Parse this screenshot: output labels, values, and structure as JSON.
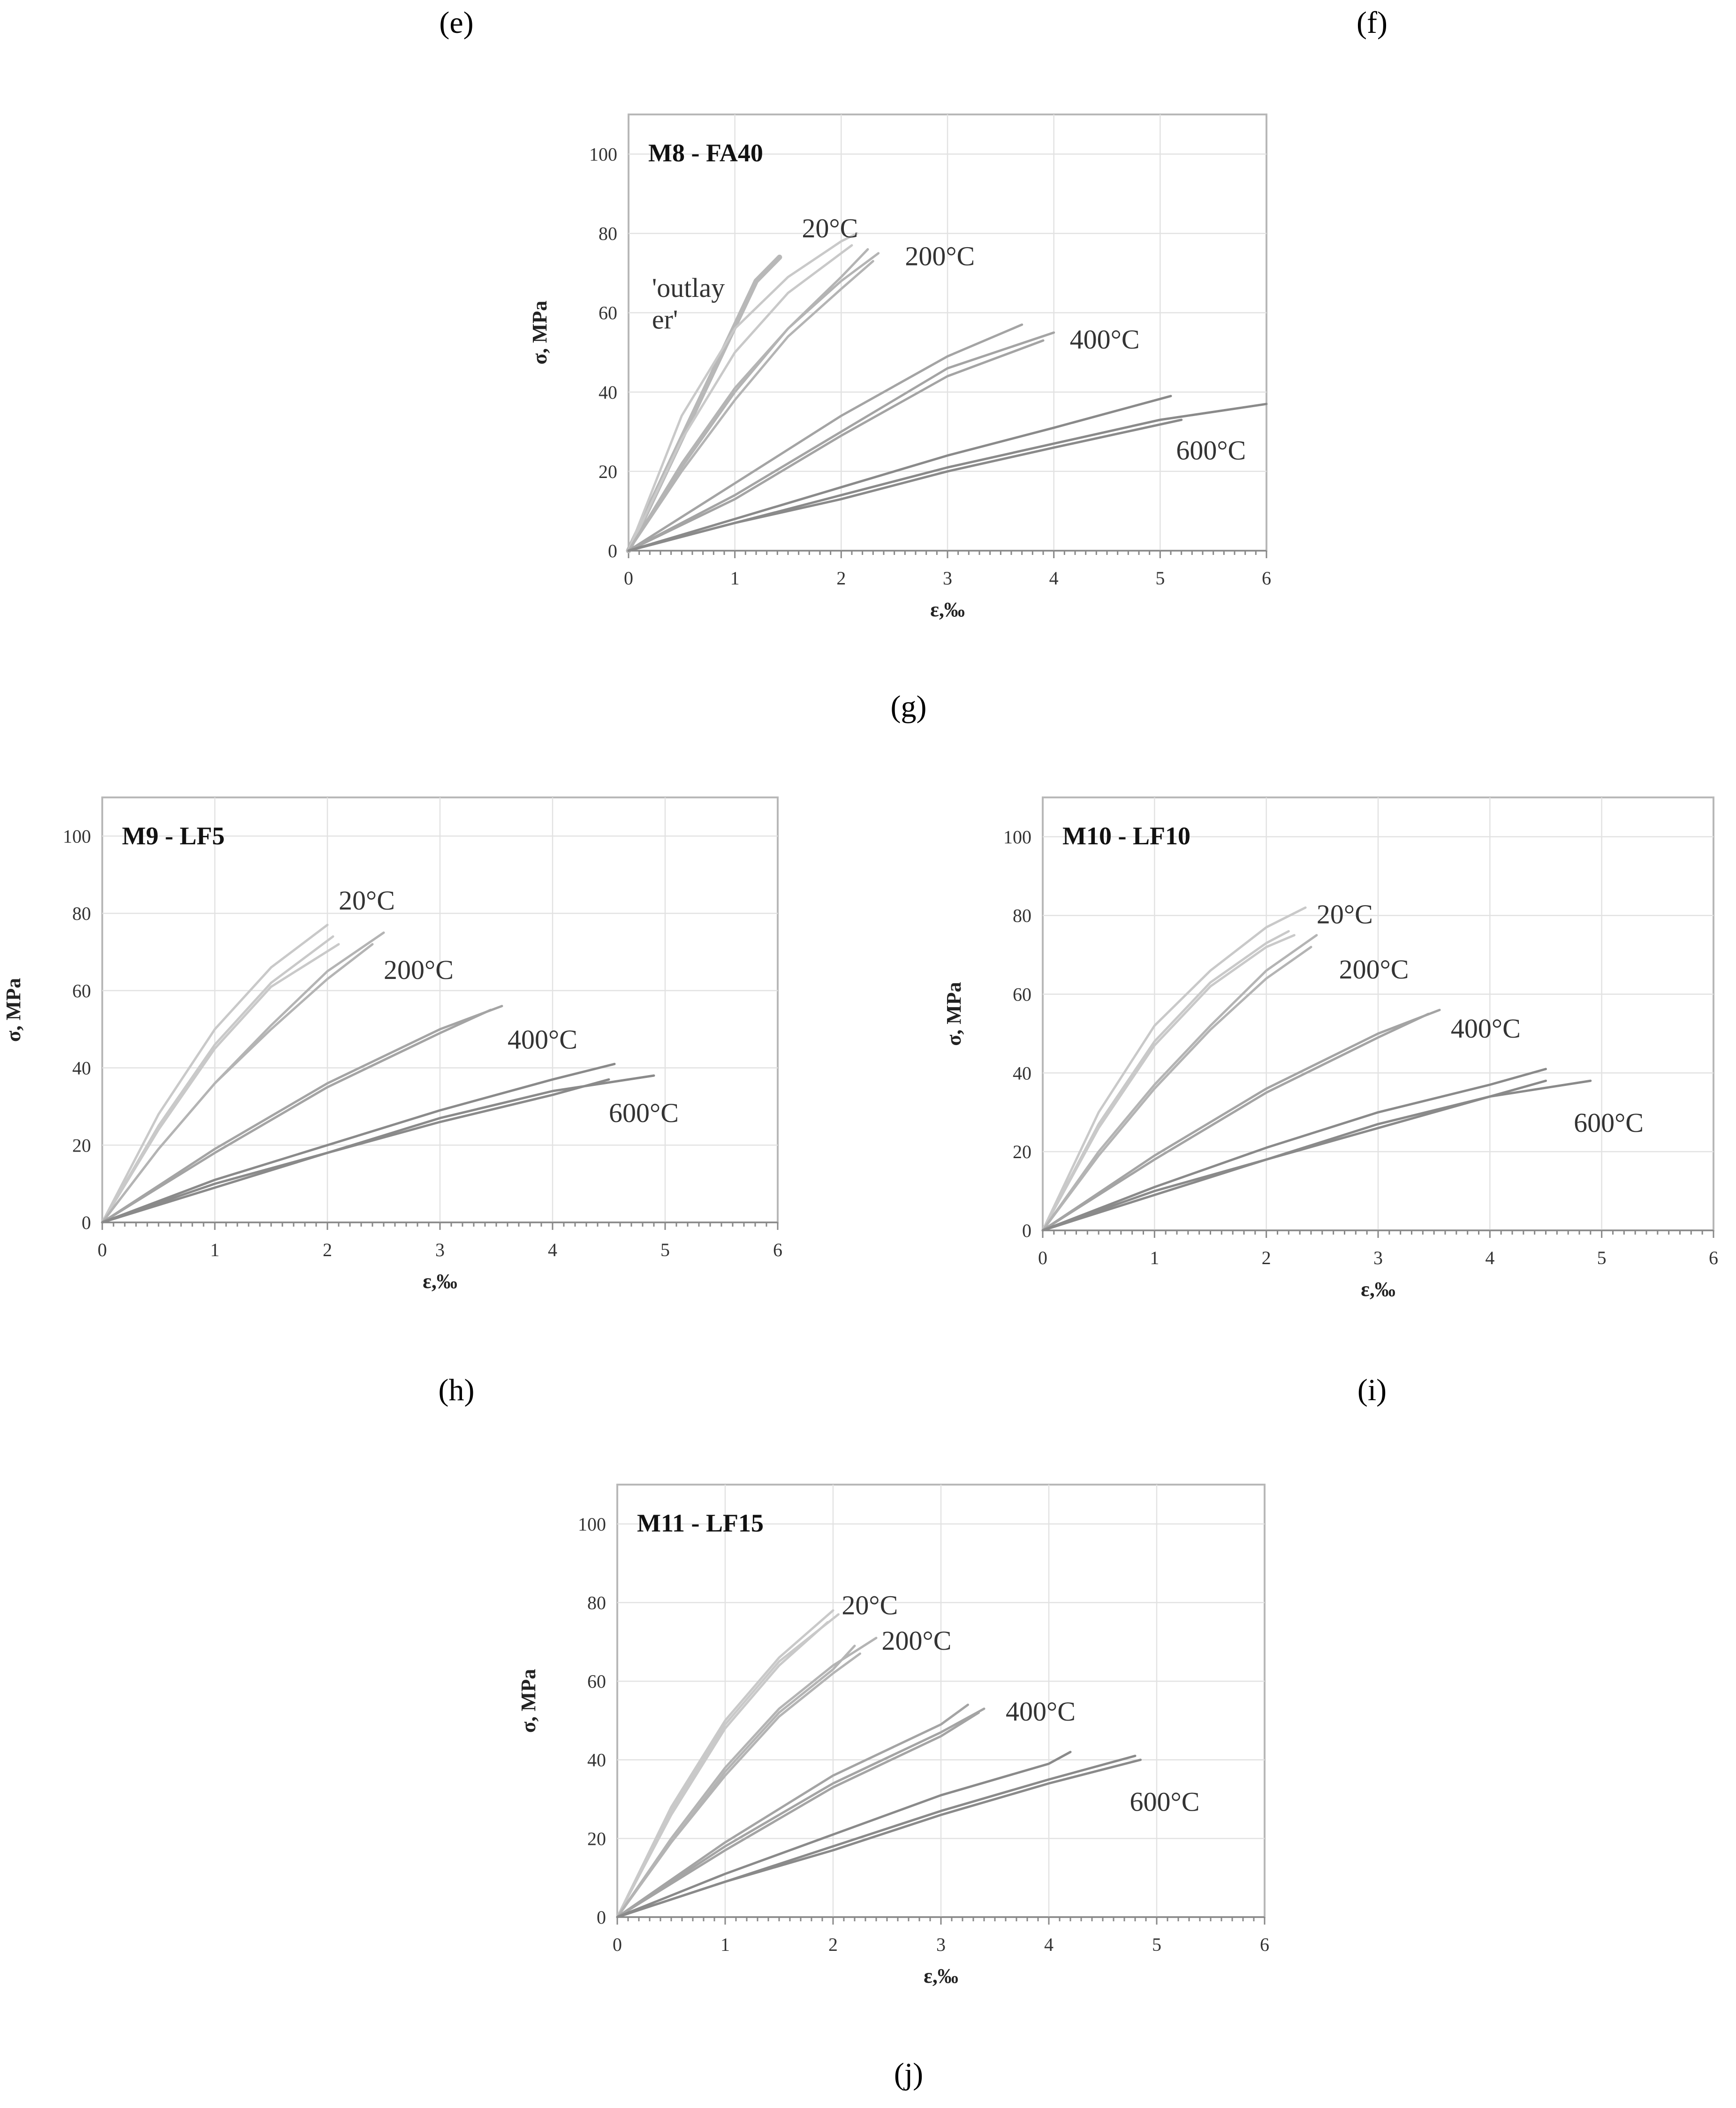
{
  "captions": {
    "e": "(e)",
    "f": "(f)"
  },
  "chart_data": [
    {
      "id": "g",
      "type": "line",
      "caption": "(g)",
      "title": "M8 - FA40",
      "xlabel": "ε,‰",
      "ylabel": "σ, MPa",
      "xlim": [
        0,
        6
      ],
      "ylim": [
        0,
        110
      ],
      "xticks": [
        0,
        1,
        2,
        3,
        4,
        5,
        6
      ],
      "yticks": [
        0,
        20,
        40,
        60,
        80,
        100
      ],
      "grid": true,
      "annotations": [
        {
          "text": "20°C",
          "x": 1.63,
          "y": 79
        },
        {
          "text": "200°C",
          "x": 2.6,
          "y": 72
        },
        {
          "text": "400°C",
          "x": 4.15,
          "y": 51
        },
        {
          "text": "600°C",
          "x": 5.15,
          "y": 23
        },
        {
          "text": "'outlay",
          "x": 0.22,
          "y": 64
        },
        {
          "text": "er'",
          "x": 0.22,
          "y": 56
        }
      ],
      "series": [
        {
          "name": "outlayer",
          "color": "#b8b8b8",
          "width": 11,
          "x": [
            0,
            0.3,
            0.6,
            0.9,
            1.2,
            1.42
          ],
          "y": [
            0,
            17,
            34,
            51,
            68,
            74
          ]
        },
        {
          "name": "20°C-1",
          "color": "#c9c9c9",
          "width": 5,
          "x": [
            0,
            0.5,
            1.0,
            1.5,
            2.0,
            2.15
          ],
          "y": [
            0,
            34,
            56,
            69,
            78,
            80
          ]
        },
        {
          "name": "20°C-2",
          "color": "#c9c9c9",
          "width": 5,
          "x": [
            0,
            0.5,
            1.0,
            1.5,
            2.0,
            2.1
          ],
          "y": [
            0,
            28,
            50,
            65,
            75,
            77
          ]
        },
        {
          "name": "200°C-1",
          "color": "#b4b4b4",
          "width": 5,
          "x": [
            0,
            0.5,
            1.0,
            1.5,
            2.0,
            2.35
          ],
          "y": [
            0,
            21,
            40,
            56,
            68,
            75
          ]
        },
        {
          "name": "200°C-2",
          "color": "#b4b4b4",
          "width": 5,
          "x": [
            0,
            0.5,
            1.0,
            1.5,
            2.0,
            2.3
          ],
          "y": [
            0,
            20,
            38,
            54,
            66,
            73
          ]
        },
        {
          "name": "200°C-3",
          "color": "#b4b4b4",
          "width": 5,
          "x": [
            0,
            0.5,
            1.0,
            1.5,
            2.0,
            2.25
          ],
          "y": [
            0,
            22,
            41,
            56,
            69,
            76
          ]
        },
        {
          "name": "400°C-1",
          "color": "#a4a4a4",
          "width": 5,
          "x": [
            0,
            1,
            2,
            3,
            3.7
          ],
          "y": [
            0,
            17,
            34,
            49,
            57
          ]
        },
        {
          "name": "400°C-2",
          "color": "#a4a4a4",
          "width": 5,
          "x": [
            0,
            1,
            2,
            3,
            4.0
          ],
          "y": [
            0,
            14,
            30,
            46,
            55
          ]
        },
        {
          "name": "400°C-3",
          "color": "#a4a4a4",
          "width": 5,
          "x": [
            0,
            1,
            2,
            3,
            3.9
          ],
          "y": [
            0,
            13,
            29,
            44,
            53
          ]
        },
        {
          "name": "600°C-1",
          "color": "#8a8a8a",
          "width": 5,
          "x": [
            0,
            1,
            2,
            3,
            4,
            5.1
          ],
          "y": [
            0,
            8,
            16,
            24,
            31,
            39
          ]
        },
        {
          "name": "600°C-2",
          "color": "#8a8a8a",
          "width": 5,
          "x": [
            0,
            1,
            2,
            3,
            4,
            5,
            6
          ],
          "y": [
            0,
            7,
            14,
            21,
            27,
            33,
            37
          ]
        },
        {
          "name": "600°C-3",
          "color": "#8a8a8a",
          "width": 5,
          "x": [
            0,
            1,
            2,
            3,
            4,
            5.2
          ],
          "y": [
            0,
            7,
            13,
            20,
            26,
            33
          ]
        }
      ]
    },
    {
      "id": "h",
      "type": "line",
      "caption": "(h)",
      "title": "M9 - LF5",
      "xlabel": "ε,‰",
      "ylabel": "σ, MPa",
      "xlim": [
        0,
        6
      ],
      "ylim": [
        0,
        110
      ],
      "xticks": [
        0,
        1,
        2,
        3,
        4,
        5,
        6
      ],
      "yticks": [
        0,
        20,
        40,
        60,
        80,
        100
      ],
      "grid": true,
      "annotations": [
        {
          "text": "20°C",
          "x": 2.1,
          "y": 81
        },
        {
          "text": "200°C",
          "x": 2.5,
          "y": 63
        },
        {
          "text": "400°C",
          "x": 3.6,
          "y": 45
        },
        {
          "text": "600°C",
          "x": 4.5,
          "y": 26
        }
      ],
      "series": [
        {
          "name": "20°C-1",
          "color": "#c9c9c9",
          "width": 5,
          "x": [
            0,
            0.5,
            1.0,
            1.5,
            2.0
          ],
          "y": [
            0,
            28,
            50,
            66,
            77
          ]
        },
        {
          "name": "20°C-2",
          "color": "#c9c9c9",
          "width": 5,
          "x": [
            0,
            0.5,
            1.0,
            1.5,
            2.05
          ],
          "y": [
            0,
            25,
            46,
            62,
            74
          ]
        },
        {
          "name": "20°C-3",
          "color": "#c9c9c9",
          "width": 5,
          "x": [
            0,
            0.5,
            1.0,
            1.5,
            2.1
          ],
          "y": [
            0,
            24,
            45,
            61,
            72
          ]
        },
        {
          "name": "200°C-1",
          "color": "#b4b4b4",
          "width": 5,
          "x": [
            0,
            0.5,
            1.0,
            1.5,
            2.0,
            2.5
          ],
          "y": [
            0,
            19,
            36,
            51,
            65,
            75
          ]
        },
        {
          "name": "200°C-2",
          "color": "#b4b4b4",
          "width": 5,
          "x": [
            0,
            0.5,
            1.0,
            1.5,
            2.0,
            2.4
          ],
          "y": [
            0,
            19,
            36,
            50,
            63,
            72
          ]
        },
        {
          "name": "400°C-1",
          "color": "#a4a4a4",
          "width": 5,
          "x": [
            0,
            1,
            2,
            3,
            3.55
          ],
          "y": [
            0,
            19,
            36,
            50,
            56
          ]
        },
        {
          "name": "400°C-2",
          "color": "#a4a4a4",
          "width": 5,
          "x": [
            0,
            1,
            2,
            3,
            3.45
          ],
          "y": [
            0,
            18,
            35,
            49,
            55
          ]
        },
        {
          "name": "600°C-1",
          "color": "#8a8a8a",
          "width": 5,
          "x": [
            0,
            1,
            2,
            3,
            4,
            4.55
          ],
          "y": [
            0,
            11,
            20,
            29,
            37,
            41
          ]
        },
        {
          "name": "600°C-2",
          "color": "#8a8a8a",
          "width": 5,
          "x": [
            0,
            1,
            2,
            3,
            4,
            4.9
          ],
          "y": [
            0,
            10,
            18,
            27,
            34,
            38
          ]
        },
        {
          "name": "600°C-3",
          "color": "#8a8a8a",
          "width": 5,
          "x": [
            0,
            1,
            2,
            3,
            4,
            4.5
          ],
          "y": [
            0,
            9,
            18,
            26,
            33,
            37
          ]
        }
      ]
    },
    {
      "id": "i",
      "type": "line",
      "caption": "(i)",
      "title": "M10 - LF10",
      "xlabel": "ε,‰",
      "ylabel": "σ, MPa",
      "xlim": [
        0,
        6
      ],
      "ylim": [
        0,
        110
      ],
      "xticks": [
        0,
        1,
        2,
        3,
        4,
        5,
        6
      ],
      "yticks": [
        0,
        20,
        40,
        60,
        80,
        100
      ],
      "grid": true,
      "annotations": [
        {
          "text": "20°C",
          "x": 2.45,
          "y": 78
        },
        {
          "text": "200°C",
          "x": 2.65,
          "y": 64
        },
        {
          "text": "400°C",
          "x": 3.65,
          "y": 49
        },
        {
          "text": "600°C",
          "x": 4.75,
          "y": 25
        }
      ],
      "series": [
        {
          "name": "20°C-1",
          "color": "#c9c9c9",
          "width": 5,
          "x": [
            0,
            0.5,
            1.0,
            1.5,
            2.0,
            2.35
          ],
          "y": [
            0,
            30,
            52,
            66,
            77,
            82
          ]
        },
        {
          "name": "20°C-2",
          "color": "#c9c9c9",
          "width": 5,
          "x": [
            0,
            0.5,
            1.0,
            1.5,
            2.0,
            2.2
          ],
          "y": [
            0,
            27,
            48,
            63,
            73,
            76
          ]
        },
        {
          "name": "20°C-3",
          "color": "#c9c9c9",
          "width": 5,
          "x": [
            0,
            0.5,
            1.0,
            1.5,
            2.0,
            2.25
          ],
          "y": [
            0,
            26,
            47,
            62,
            72,
            75
          ]
        },
        {
          "name": "200°C-1",
          "color": "#b4b4b4",
          "width": 5,
          "x": [
            0,
            0.5,
            1.0,
            1.5,
            2.0,
            2.45
          ],
          "y": [
            0,
            20,
            37,
            52,
            66,
            75
          ]
        },
        {
          "name": "200°C-2",
          "color": "#b4b4b4",
          "width": 5,
          "x": [
            0,
            0.5,
            1.0,
            1.5,
            2.0,
            2.4
          ],
          "y": [
            0,
            19,
            36,
            51,
            64,
            72
          ]
        },
        {
          "name": "400°C-1",
          "color": "#a4a4a4",
          "width": 5,
          "x": [
            0,
            1,
            2,
            3,
            3.55
          ],
          "y": [
            0,
            19,
            36,
            50,
            56
          ]
        },
        {
          "name": "400°C-2",
          "color": "#a4a4a4",
          "width": 5,
          "x": [
            0,
            1,
            2,
            3,
            3.45
          ],
          "y": [
            0,
            18,
            35,
            49,
            55
          ]
        },
        {
          "name": "600°C-1",
          "color": "#8a8a8a",
          "width": 5,
          "x": [
            0,
            1,
            2,
            3,
            4,
            4.5
          ],
          "y": [
            0,
            11,
            21,
            30,
            37,
            41
          ]
        },
        {
          "name": "600°C-2",
          "color": "#8a8a8a",
          "width": 5,
          "x": [
            0,
            1,
            2,
            3,
            4,
            4.9
          ],
          "y": [
            0,
            10,
            18,
            27,
            34,
            38
          ]
        },
        {
          "name": "600°C-3",
          "color": "#8a8a8a",
          "width": 5,
          "x": [
            0,
            1,
            2,
            3,
            4,
            4.5
          ],
          "y": [
            0,
            9,
            18,
            26,
            34,
            38
          ]
        }
      ]
    },
    {
      "id": "j",
      "type": "line",
      "caption": "(j)",
      "title": "M11 - LF15",
      "xlabel": "ε,‰",
      "ylabel": "σ, MPa",
      "xlim": [
        0,
        6
      ],
      "ylim": [
        0,
        110
      ],
      "xticks": [
        0,
        1,
        2,
        3,
        4,
        5,
        6
      ],
      "yticks": [
        0,
        20,
        40,
        60,
        80,
        100
      ],
      "grid": true,
      "annotations": [
        {
          "text": "20°C",
          "x": 2.08,
          "y": 77
        },
        {
          "text": "200°C",
          "x": 2.45,
          "y": 68
        },
        {
          "text": "400°C",
          "x": 3.6,
          "y": 50
        },
        {
          "text": "600°C",
          "x": 4.75,
          "y": 27
        }
      ],
      "series": [
        {
          "name": "20°C-1",
          "color": "#c9c9c9",
          "width": 5,
          "x": [
            0,
            0.5,
            1.0,
            1.5,
            2.0
          ],
          "y": [
            0,
            28,
            50,
            66,
            78
          ]
        },
        {
          "name": "20°C-2",
          "color": "#c9c9c9",
          "width": 5,
          "x": [
            0,
            0.5,
            1.0,
            1.5,
            1.95
          ],
          "y": [
            0,
            26,
            48,
            64,
            75
          ]
        },
        {
          "name": "20°C-3",
          "color": "#c9c9c9",
          "width": 5,
          "x": [
            0,
            0.5,
            1.0,
            1.5,
            2.05
          ],
          "y": [
            0,
            27,
            49,
            65,
            77
          ]
        },
        {
          "name": "200°C-1",
          "color": "#b4b4b4",
          "width": 5,
          "x": [
            0,
            0.5,
            1.0,
            1.5,
            2.0,
            2.4
          ],
          "y": [
            0,
            20,
            38,
            53,
            64,
            71
          ]
        },
        {
          "name": "200°C-2",
          "color": "#b4b4b4",
          "width": 5,
          "x": [
            0,
            0.5,
            1.0,
            1.5,
            2.0,
            2.25
          ],
          "y": [
            0,
            19,
            36,
            51,
            62,
            67
          ]
        },
        {
          "name": "200°C-3",
          "color": "#b4b4b4",
          "width": 5,
          "x": [
            0,
            0.5,
            1.0,
            1.5,
            2.0,
            2.2
          ],
          "y": [
            0,
            19,
            37,
            52,
            63,
            69
          ]
        },
        {
          "name": "400°C-1",
          "color": "#a4a4a4",
          "width": 5,
          "x": [
            0,
            1,
            2,
            3,
            3.25
          ],
          "y": [
            0,
            19,
            36,
            49,
            54
          ]
        },
        {
          "name": "400°C-2",
          "color": "#a4a4a4",
          "width": 5,
          "x": [
            0,
            1,
            2,
            3,
            3.4
          ],
          "y": [
            0,
            18,
            34,
            47,
            53
          ]
        },
        {
          "name": "400°C-3",
          "color": "#a4a4a4",
          "width": 5,
          "x": [
            0,
            1,
            2,
            3,
            3.35
          ],
          "y": [
            0,
            17,
            33,
            46,
            52
          ]
        },
        {
          "name": "600°C-1",
          "color": "#8a8a8a",
          "width": 5,
          "x": [
            0,
            1,
            2,
            3,
            4,
            4.2
          ],
          "y": [
            0,
            11,
            21,
            31,
            39,
            42
          ]
        },
        {
          "name": "600°C-2",
          "color": "#8a8a8a",
          "width": 5,
          "x": [
            0,
            1,
            2,
            3,
            4,
            4.8
          ],
          "y": [
            0,
            9,
            18,
            27,
            35,
            41
          ]
        },
        {
          "name": "600°C-3",
          "color": "#8a8a8a",
          "width": 5,
          "x": [
            0,
            1,
            2,
            3,
            4,
            4.85
          ],
          "y": [
            0,
            9,
            17,
            26,
            34,
            40
          ]
        }
      ]
    }
  ]
}
